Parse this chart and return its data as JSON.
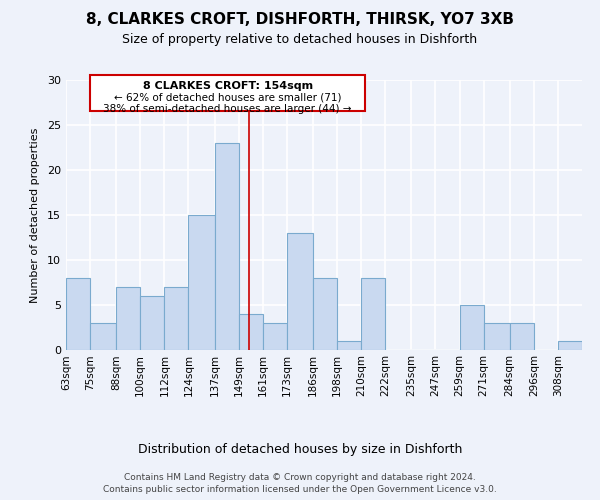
{
  "title": "8, CLARKES CROFT, DISHFORTH, THIRSK, YO7 3XB",
  "subtitle": "Size of property relative to detached houses in Dishforth",
  "xlabel": "Distribution of detached houses by size in Dishforth",
  "ylabel": "Number of detached properties",
  "bin_labels": [
    "63sqm",
    "75sqm",
    "88sqm",
    "100sqm",
    "112sqm",
    "124sqm",
    "137sqm",
    "149sqm",
    "161sqm",
    "173sqm",
    "186sqm",
    "198sqm",
    "210sqm",
    "222sqm",
    "235sqm",
    "247sqm",
    "259sqm",
    "271sqm",
    "284sqm",
    "296sqm",
    "308sqm"
  ],
  "bar_heights": [
    8,
    3,
    7,
    6,
    7,
    15,
    23,
    4,
    3,
    13,
    8,
    1,
    8,
    0,
    0,
    0,
    5,
    3,
    3,
    0,
    1
  ],
  "bar_color": "#c9d9f0",
  "bar_edge_color": "#7aaace",
  "property_line_label": "8 CLARKES CROFT: 154sqm",
  "annotation_line1": "← 62% of detached houses are smaller (71)",
  "annotation_line2": "38% of semi-detached houses are larger (44) →",
  "annotation_box_edge": "#cc0000",
  "line_color": "#cc0000",
  "ylim": [
    0,
    30
  ],
  "yticks": [
    0,
    5,
    10,
    15,
    20,
    25,
    30
  ],
  "footer_line1": "Contains HM Land Registry data © Crown copyright and database right 2024.",
  "footer_line2": "Contains public sector information licensed under the Open Government Licence v3.0.",
  "bg_color": "#eef2fa",
  "grid_color": "#ffffff",
  "bin_edges": [
    63,
    75,
    88,
    100,
    112,
    124,
    137,
    149,
    161,
    173,
    186,
    198,
    210,
    222,
    235,
    247,
    259,
    271,
    284,
    296,
    308,
    320
  ]
}
